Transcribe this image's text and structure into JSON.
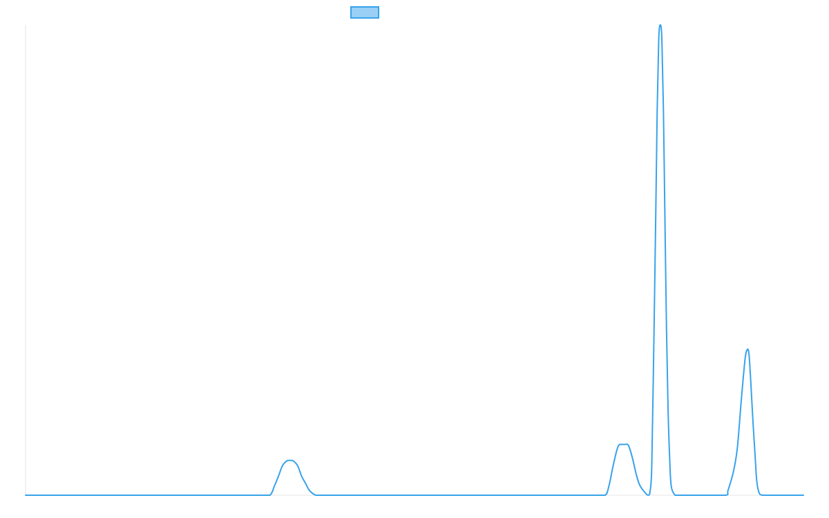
{
  "chart_data": {
    "type": "line",
    "title": "",
    "xlabel": "",
    "ylabel": "",
    "grid": false,
    "legend": "top-center",
    "xlim": [
      0,
      1000
    ],
    "ylim": [
      0,
      1
    ],
    "colors": {
      "line": "#36a2eb",
      "legend_fill": "#9ad0f5",
      "axis": "#e5e5e5"
    },
    "series": [
      {
        "x": [
          0,
          30,
          60,
          90,
          120,
          150,
          180,
          210,
          240,
          270,
          300,
          314,
          320,
          325,
          330,
          335,
          338,
          340,
          342,
          345,
          350,
          355,
          360,
          365,
          373,
          380,
          420,
          460,
          500,
          540,
          580,
          620,
          660,
          700,
          730,
          745,
          750,
          755,
          760,
          763,
          766,
          770,
          775,
          780,
          785,
          790,
          800,
          803,
          805,
          807,
          810,
          812,
          814,
          816,
          818,
          820,
          822,
          824,
          826,
          828,
          830,
          835,
          840,
          846,
          855,
          870,
          900,
          903,
          910,
          915,
          920,
          925,
          928,
          930,
          932,
          935,
          938,
          940,
          943,
          947,
          952,
          960,
          1000
        ],
        "y": [
          0,
          0,
          0,
          0,
          0,
          0,
          0,
          0,
          0,
          0,
          0,
          0,
          0.02,
          0.04,
          0.062,
          0.072,
          0.074,
          0.074,
          0.074,
          0.072,
          0.062,
          0.04,
          0.025,
          0.01,
          0,
          0,
          0,
          0,
          0,
          0,
          0,
          0,
          0,
          0,
          0,
          0,
          0.02,
          0.06,
          0.095,
          0.107,
          0.108,
          0.108,
          0.106,
          0.08,
          0.045,
          0.02,
          0,
          0.01,
          0.06,
          0.25,
          0.58,
          0.82,
          0.97,
          1.0,
          0.97,
          0.82,
          0.58,
          0.35,
          0.18,
          0.08,
          0.02,
          0,
          0,
          0,
          0,
          0,
          0,
          0.01,
          0.05,
          0.1,
          0.2,
          0.29,
          0.31,
          0.3,
          0.25,
          0.16,
          0.08,
          0.03,
          0.005,
          0,
          0,
          0,
          0
        ]
      }
    ]
  }
}
